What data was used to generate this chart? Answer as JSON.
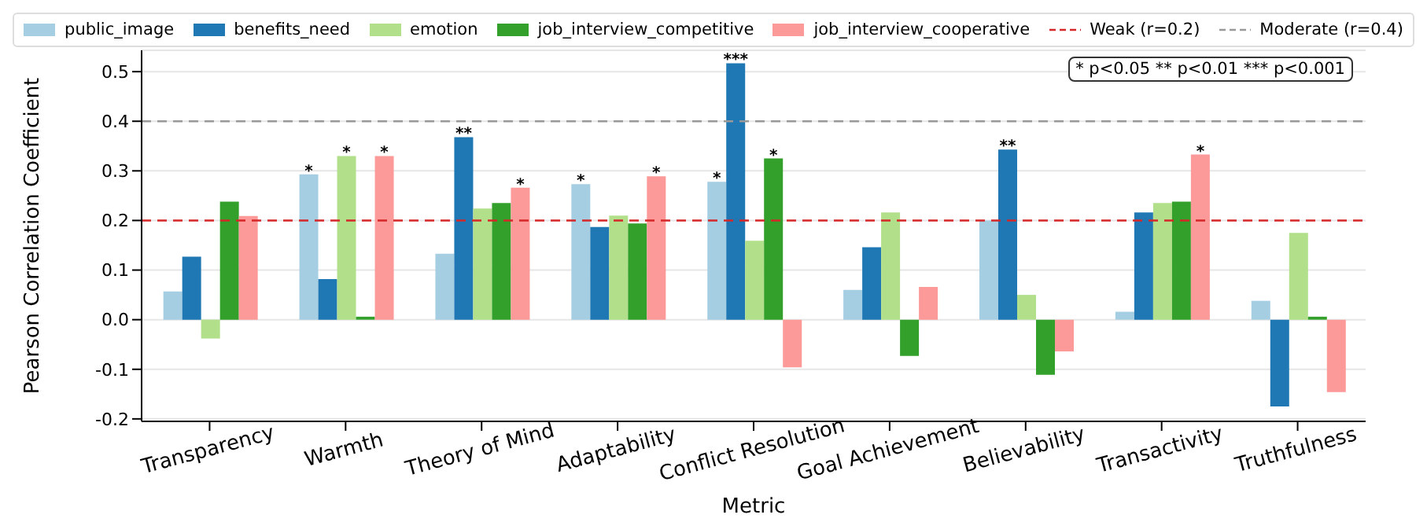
{
  "chart_data": {
    "type": "bar",
    "xlabel": "Metric",
    "ylabel": "Pearson Correlation Coefficient",
    "categories": [
      "Transparency",
      "Warmth",
      "Theory of Mind",
      "Adaptability",
      "Conflict Resolution",
      "Goal Achievement",
      "Believability",
      "Transactivity",
      "Truthfulness"
    ],
    "series": [
      {
        "name": "public_image",
        "color": "#a6cee3",
        "values": [
          0.057,
          0.293,
          0.133,
          0.273,
          0.278,
          0.06,
          0.2,
          0.016,
          0.038
        ],
        "value_labels": [
          null,
          "*",
          null,
          "*",
          "*",
          null,
          null,
          null,
          null
        ]
      },
      {
        "name": "benefits_need",
        "color": "#1f78b4",
        "values": [
          0.127,
          0.082,
          0.368,
          0.187,
          0.517,
          0.146,
          0.343,
          0.216,
          -0.175
        ],
        "value_labels": [
          null,
          null,
          "**",
          null,
          "***",
          null,
          "**",
          null,
          null
        ]
      },
      {
        "name": "emotion",
        "color": "#b2df8a",
        "values": [
          -0.038,
          0.33,
          0.224,
          0.21,
          0.159,
          0.216,
          0.05,
          0.235,
          0.175
        ],
        "value_labels": [
          null,
          "*",
          null,
          null,
          null,
          null,
          null,
          null,
          null
        ]
      },
      {
        "name": "job_interview_competitive",
        "color": "#33a02c",
        "values": [
          0.238,
          0.006,
          0.235,
          0.194,
          0.325,
          -0.073,
          -0.111,
          0.238,
          0.006
        ],
        "value_labels": [
          null,
          null,
          null,
          null,
          "*",
          null,
          null,
          null,
          null
        ]
      },
      {
        "name": "job_interview_cooperative",
        "color": "#fb9a99",
        "values": [
          0.209,
          0.33,
          0.266,
          0.289,
          -0.096,
          0.066,
          -0.064,
          0.333,
          -0.146
        ],
        "value_labels": [
          null,
          "*",
          "*",
          "*",
          null,
          null,
          null,
          "*",
          null
        ]
      }
    ],
    "ylim": [
      -0.205,
      0.543
    ],
    "yticks": [
      -0.2,
      -0.1,
      {
        "value": 0,
        "label": "0.0"
      },
      0.1,
      0.2,
      0.3,
      0.4,
      0.5
    ],
    "grid": "y",
    "legend": "top",
    "ref_lines": [
      {
        "axis": "y",
        "value": 0.2,
        "label": "Weak (r=0.2)",
        "color": "#d62728",
        "line_style": "dashed"
      },
      {
        "axis": "y",
        "value": 0.4,
        "label": "Moderate (r=0.4)",
        "color": "#999999",
        "line_style": "dashed"
      }
    ],
    "annotations": [
      "* p<0.05  ** p<0.01  *** p<0.001"
    ]
  }
}
